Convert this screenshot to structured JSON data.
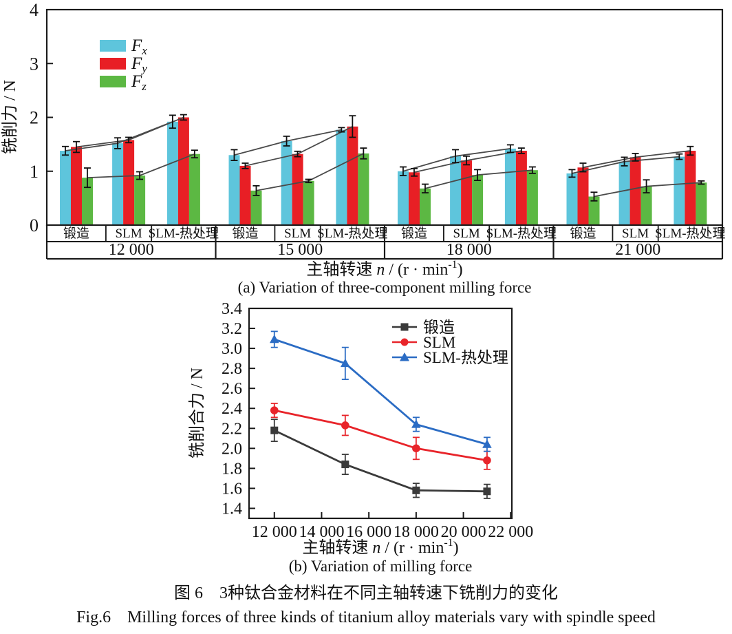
{
  "figure": {
    "caption_zh": "图 6　3种钛合金材料在不同主轴转速下铣削力的变化",
    "caption_en": "Fig.6　Milling forces of three kinds of titanium alloy materials vary with spindle speed"
  },
  "colors": {
    "axis": "#1a1a1a",
    "connector": "#4a4a4a",
    "error_bar": "#111111"
  },
  "chart_data": [
    {
      "type": "bar",
      "sub_caption": "(a) Variation of three-component milling force",
      "ylabel": "铣削力 / N",
      "xlabel": {
        "pre": "主轴转速 ",
        "var": "n",
        "post": " / (r · min",
        "sup": "-1",
        "end": ")"
      },
      "ylim": [
        0,
        4
      ],
      "yticks": [
        0,
        1,
        2,
        3,
        4
      ],
      "grid": false,
      "legend_position": "upper-left",
      "speed_groups": [
        "12 000",
        "15 000",
        "18 000",
        "21 000"
      ],
      "materials": [
        "锻造",
        "SLM",
        "SLM-热处理"
      ],
      "legend": [
        {
          "main": "F",
          "sub": "x"
        },
        {
          "main": "F",
          "sub": "y"
        },
        {
          "main": "F",
          "sub": "z"
        }
      ],
      "connectors_across_materials": true,
      "series": [
        {
          "name": "Fx",
          "color": "#5ec5dc",
          "values": [
            [
              1.38,
              1.52,
              1.92
            ],
            [
              1.3,
              1.56,
              1.77
            ],
            [
              1.0,
              1.28,
              1.42
            ],
            [
              0.96,
              1.18,
              1.27
            ]
          ],
          "errors": [
            [
              0.08,
              0.1,
              0.12
            ],
            [
              0.1,
              0.09,
              0.04
            ],
            [
              0.08,
              0.12,
              0.07
            ],
            [
              0.07,
              0.08,
              0.05
            ]
          ]
        },
        {
          "name": "Fy",
          "color": "#e81f25",
          "values": [
            [
              1.45,
              1.58,
              2.0
            ],
            [
              1.1,
              1.32,
              1.83
            ],
            [
              0.98,
              1.2,
              1.38
            ],
            [
              1.07,
              1.26,
              1.38
            ]
          ],
          "errors": [
            [
              0.1,
              0.05,
              0.05
            ],
            [
              0.05,
              0.05,
              0.2
            ],
            [
              0.07,
              0.08,
              0.05
            ],
            [
              0.08,
              0.07,
              0.08
            ]
          ]
        },
        {
          "name": "Fz",
          "color": "#5cb843",
          "values": [
            [
              0.88,
              0.92,
              1.32
            ],
            [
              0.64,
              0.82,
              1.33
            ],
            [
              0.68,
              0.93,
              1.02
            ],
            [
              0.53,
              0.72,
              0.79
            ]
          ],
          "errors": [
            [
              0.18,
              0.07,
              0.07
            ],
            [
              0.09,
              0.03,
              0.1
            ],
            [
              0.08,
              0.1,
              0.06
            ],
            [
              0.08,
              0.12,
              0.03
            ]
          ]
        }
      ]
    },
    {
      "type": "line",
      "sub_caption": "(b) Variation of milling force",
      "ylabel": "铣削合力 / N",
      "xlabel": {
        "pre": "主轴转速 ",
        "var": "n",
        "post": " / (r · min",
        "sup": "-1",
        "end": ")"
      },
      "x": [
        12000,
        15000,
        18000,
        21000
      ],
      "xlim": [
        10930,
        22050
      ],
      "ylim": [
        1.3,
        3.4
      ],
      "xticks": [
        12000,
        14000,
        16000,
        18000,
        20000,
        22000
      ],
      "xtick_labels": [
        "12 000",
        "14 000",
        "16 000",
        "18 000",
        "20 000",
        "22 000"
      ],
      "yticks": [
        1.4,
        1.6,
        1.8,
        2.0,
        2.2,
        2.4,
        2.6,
        2.8,
        3.0,
        3.2,
        3.4
      ],
      "grid": false,
      "legend_position": "upper-right",
      "series": [
        {
          "name": "锻造",
          "marker": "square",
          "color": "#3a3a3a",
          "values": [
            2.18,
            1.84,
            1.58,
            1.57
          ],
          "errors": [
            0.11,
            0.1,
            0.07,
            0.07
          ]
        },
        {
          "name": "SLM",
          "marker": "circle",
          "color": "#e8242a",
          "values": [
            2.38,
            2.23,
            2.0,
            1.88
          ],
          "errors": [
            0.07,
            0.1,
            0.11,
            0.09
          ]
        },
        {
          "name": "SLM-热处理",
          "marker": "triangle",
          "color": "#2b6cc4",
          "values": [
            3.09,
            2.85,
            2.24,
            2.04
          ],
          "errors": [
            0.08,
            0.16,
            0.07,
            0.07
          ]
        }
      ]
    }
  ]
}
